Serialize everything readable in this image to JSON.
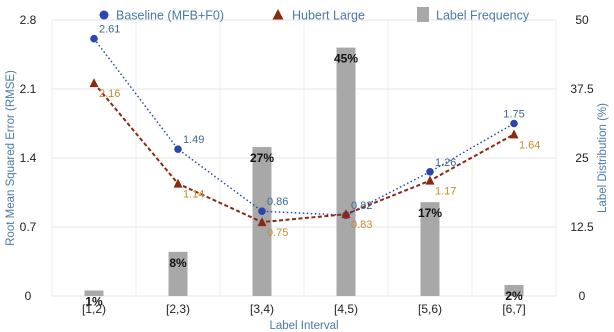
{
  "chart_data": {
    "type": "bar",
    "title": "",
    "xlabel": "Label Interval",
    "ylabel_left": "Root Mean Squared Error (RMSE)",
    "ylabel_right": "Label Distribution (%)",
    "categories": [
      "[1,2)",
      "[2,3)",
      "[3,4)",
      "[4,5)",
      "[5,6)",
      "[6,7]"
    ],
    "ylim_left": [
      0,
      2.8
    ],
    "yticks_left": [
      "0",
      "0.7",
      "1.4",
      "2.1",
      "2.8"
    ],
    "ylim_right": [
      0,
      50
    ],
    "yticks_right": [
      "0",
      "12.5",
      "25",
      "37.5",
      "50"
    ],
    "grid": true,
    "legend_position": "top",
    "bars": {
      "name": "Label Frequency",
      "axis": "right",
      "color": "#a8a8a8",
      "values": [
        1,
        8,
        27,
        45,
        17,
        2
      ],
      "labels": [
        "1%",
        "8%",
        "27%",
        "45%",
        "17%",
        "2%"
      ]
    },
    "series": [
      {
        "name": "Baseline (MFB+F0)",
        "axis": "left",
        "color": "#2a45b0",
        "label_color": "#3b6a96",
        "marker": "circle",
        "line": "dotted",
        "values": [
          2.61,
          1.49,
          0.86,
          0.82,
          1.26,
          1.75
        ],
        "labels": [
          "2.61",
          "1.49",
          "0.86",
          "0.82",
          "1.26",
          "1.75"
        ]
      },
      {
        "name": "Hubert Large",
        "axis": "left",
        "color": "#8b2a12",
        "label_color": "#c98a2e",
        "marker": "triangle",
        "line": "dashed",
        "values": [
          2.16,
          1.14,
          0.75,
          0.83,
          1.17,
          1.64
        ],
        "labels": [
          "2.16",
          "1.14",
          "0.75",
          "0.83",
          "1.17",
          "1.64"
        ]
      }
    ]
  }
}
